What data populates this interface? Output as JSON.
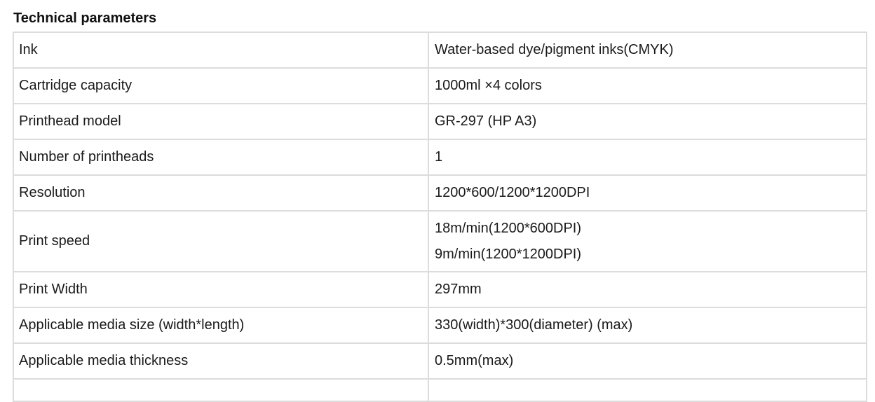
{
  "title": "Technical parameters",
  "rows": [
    {
      "label": "Ink",
      "value": [
        "Water-based dye/pigment inks(CMYK)"
      ]
    },
    {
      "label": "Cartridge capacity",
      "value": [
        "1000ml ×4 colors"
      ]
    },
    {
      "label": "Printhead model",
      "value": [
        "GR-297 (HP A3)"
      ]
    },
    {
      "label": "Number of printheads",
      "value": [
        "1"
      ]
    },
    {
      "label": "Resolution",
      "value": [
        "1200*600/1200*1200DPI"
      ]
    },
    {
      "label": "Print speed",
      "value": [
        "18m/min(1200*600DPI)",
        "9m/min(1200*1200DPI)"
      ]
    },
    {
      "label": "Print Width",
      "value": [
        "297mm"
      ]
    },
    {
      "label": "Applicable media size (width*length)",
      "value": [
        "330(width)*300(diameter) (max)"
      ]
    },
    {
      "label": "Applicable media thickness",
      "value": [
        "0.5mm(max)"
      ]
    }
  ]
}
